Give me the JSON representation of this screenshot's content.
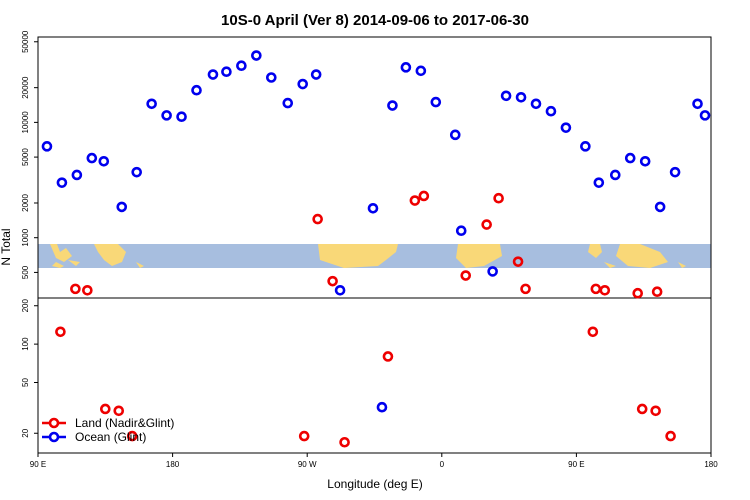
{
  "chart_data": {
    "type": "scatter",
    "title": "10S-0 April (Ver 8)   2014-09-06 to 2017-06-30",
    "xlabel": "Longitude (deg E)",
    "ylabel": "N Total",
    "x_tick_labels": [
      "90 E",
      "180",
      "90 W",
      "0",
      "90 E",
      "180"
    ],
    "x_ticks": [
      90,
      180,
      270,
      360,
      450,
      540
    ],
    "xlim": [
      90,
      540
    ],
    "upper_panel": {
      "y_scale": "log",
      "ylim": [
        300,
        55000
      ],
      "y_tick_labels": [
        "500",
        "1000",
        "2000",
        "5000",
        "10000",
        "20000",
        "50000"
      ],
      "y_ticks": [
        500,
        1000,
        2000,
        5000,
        10000,
        20000,
        50000
      ],
      "series": [
        {
          "name": "Ocean (Glint)",
          "color": "#0000ee",
          "x": [
            96,
            106,
            116,
            126,
            134,
            146,
            156,
            166,
            176,
            186,
            196,
            207,
            216,
            226,
            236,
            246,
            257,
            267,
            276,
            292,
            314,
            327,
            336,
            346,
            356,
            369,
            373,
            394,
            403,
            413,
            423,
            433,
            443,
            456,
            465,
            476,
            486,
            496,
            506,
            516,
            531,
            536
          ],
          "y": [
            6200,
            3000,
            3500,
            4900,
            4600,
            1850,
            3700,
            14500,
            11500,
            11200,
            19000,
            26000,
            27500,
            31000,
            38000,
            24500,
            14700,
            21500,
            26000,
            350,
            1800,
            14000,
            30000,
            28000,
            15000,
            7800,
            1150,
            510,
            17000,
            16500,
            14500,
            12500,
            9000,
            6200,
            3000,
            3500,
            4900,
            4600,
            1850,
            3700,
            14500,
            11500
          ]
        },
        {
          "name": "Land (Nadir&Glint)",
          "color": "#ee0000",
          "x": [
            115,
            123,
            277,
            287,
            342,
            348,
            376,
            390,
            398,
            411,
            416
          ],
          "y": [
            360,
            350,
            1450,
            420,
            2100,
            2300,
            470,
            1300,
            2200,
            620,
            360
          ],
          "x_more": [],
          "y_more": []
        }
      ]
    },
    "lower_panel": {
      "y_scale": "log",
      "ylim": [
        14,
        230
      ],
      "y_tick_labels": [
        "20",
        "50",
        "100",
        "200"
      ],
      "y_ticks": [
        20,
        50,
        100,
        200
      ],
      "series": [
        {
          "name": "Ocean (Glint)",
          "color": "#0000ee",
          "x": [
            320
          ],
          "y": [
            32
          ]
        },
        {
          "name": "Land (Nadir&Glint)",
          "color": "#ee0000",
          "x": [
            105,
            135,
            144,
            153,
            268,
            295,
            324,
            461,
            494,
            503,
            513
          ],
          "y": [
            125,
            31,
            30,
            19,
            19,
            17,
            80,
            125,
            31,
            30,
            19
          ]
        }
      ]
    },
    "upper_panel_extra_land": {
      "x": [
        463,
        469,
        491,
        504
      ],
      "y": [
        360,
        350,
        330,
        340
      ]
    },
    "legend": {
      "position": "bottom-left",
      "entries": [
        {
          "label": "Land (Nadir&Glint)",
          "color": "#ee0000"
        },
        {
          "label": "Ocean (Glint)",
          "color": "#0000ee"
        }
      ]
    },
    "map_strip": {
      "ocean_color": "#a7bedf",
      "land_color": "#f9d878"
    }
  }
}
